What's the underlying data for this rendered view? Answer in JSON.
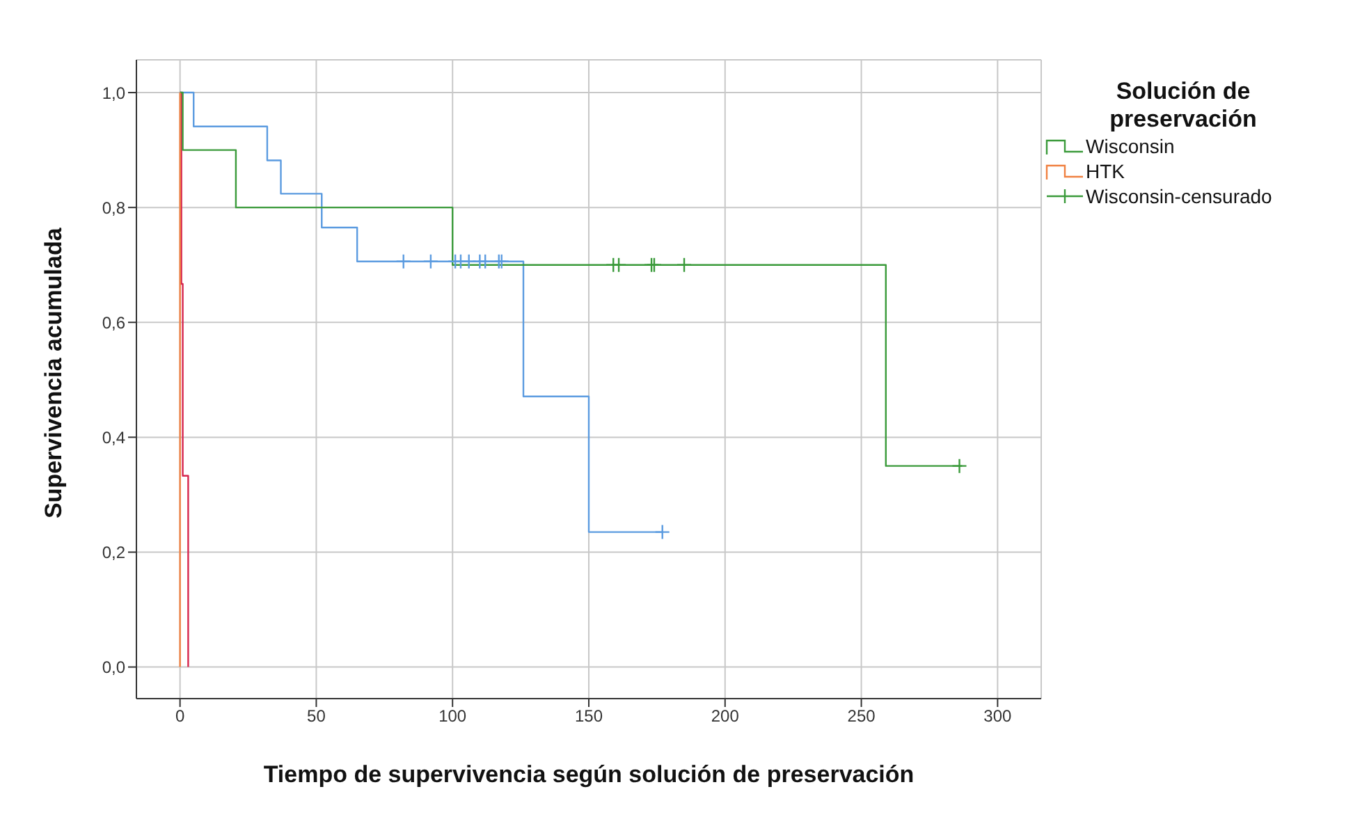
{
  "chart_data": {
    "type": "step",
    "xlabel": "Tiempo de supervivencia según solución de preservación",
    "ylabel": "Supervivencia acumulada",
    "legend_title": "Solución de preservación",
    "xlim": [
      -16,
      316
    ],
    "xticks": [
      0,
      50,
      100,
      150,
      200,
      250,
      300
    ],
    "ylim": [
      -0.055,
      1.057
    ],
    "yticks": [
      {
        "value": 0,
        "label": "0,0"
      },
      {
        "value": 0.2,
        "label": "0,2"
      },
      {
        "value": 0.4,
        "label": "0,4"
      },
      {
        "value": 0.6,
        "label": "0,6"
      },
      {
        "value": 0.8,
        "label": "0,8"
      },
      {
        "value": 1,
        "label": "1,0"
      }
    ],
    "grid": true,
    "legend": "right",
    "series": [
      {
        "type": "step",
        "color": "#5b9be0",
        "x": [
          0,
          5,
          32,
          37,
          52,
          65,
          126,
          150,
          177
        ],
        "values": [
          1,
          0.941,
          0.882,
          0.824,
          0.765,
          0.706,
          0.471,
          0.235,
          0.235
        ]
      },
      {
        "type": "step",
        "color": "#d6264d",
        "x": [
          0,
          0.5,
          1,
          3
        ],
        "values": [
          1,
          0.667,
          0.333,
          0
        ]
      },
      {
        "type": "step",
        "name": "Wisconsin",
        "color": "#3a9a3a",
        "x": [
          0,
          1,
          20.5,
          100,
          259,
          287
        ],
        "values": [
          1,
          0.9,
          0.8,
          0.7,
          0.35,
          0.35
        ]
      },
      {
        "type": "step",
        "name": "HTK",
        "color": "#f08040",
        "x": [
          0,
          0
        ],
        "values": [
          1,
          0
        ]
      },
      {
        "type": "scatter",
        "marker": "cross",
        "color": "#5b9be0",
        "x": [
          82,
          92,
          101,
          103,
          106,
          110,
          112,
          117,
          118,
          177
        ],
        "values": [
          0.706,
          0.706,
          0.706,
          0.706,
          0.706,
          0.706,
          0.706,
          0.706,
          0.706,
          0.235
        ]
      },
      {
        "type": "scatter",
        "marker": "cross",
        "name": "Wisconsin-censurado",
        "color": "#3a9a3a",
        "x": [
          159,
          161,
          173,
          174,
          185,
          286
        ],
        "values": [
          0.7,
          0.7,
          0.7,
          0.7,
          0.7,
          0.35
        ]
      }
    ]
  }
}
